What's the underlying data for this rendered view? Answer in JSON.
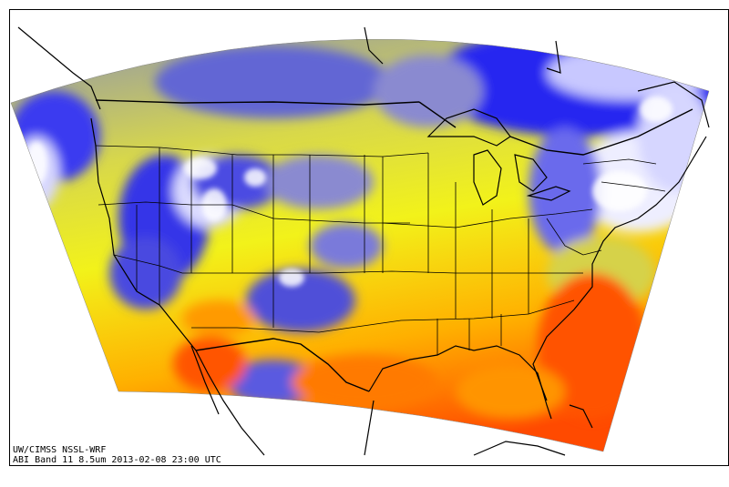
{
  "caption": {
    "line1": "UW/CIMSS NSSL-WRF",
    "line2": "ABI Band 11 8.5um 2013-02-08 23:00 UTC"
  },
  "colors": {
    "frame": "#000000",
    "background": "#ffffff",
    "warm_deep": "#ff2a00",
    "warm": "#ff8c00",
    "mid": "#ffd800",
    "yellow": "#f2f21a",
    "olive": "#a8a878",
    "cool": "#4a4ee0",
    "cold": "#1414ff",
    "coldest": "#f4f4ff",
    "borders": "#000000"
  }
}
